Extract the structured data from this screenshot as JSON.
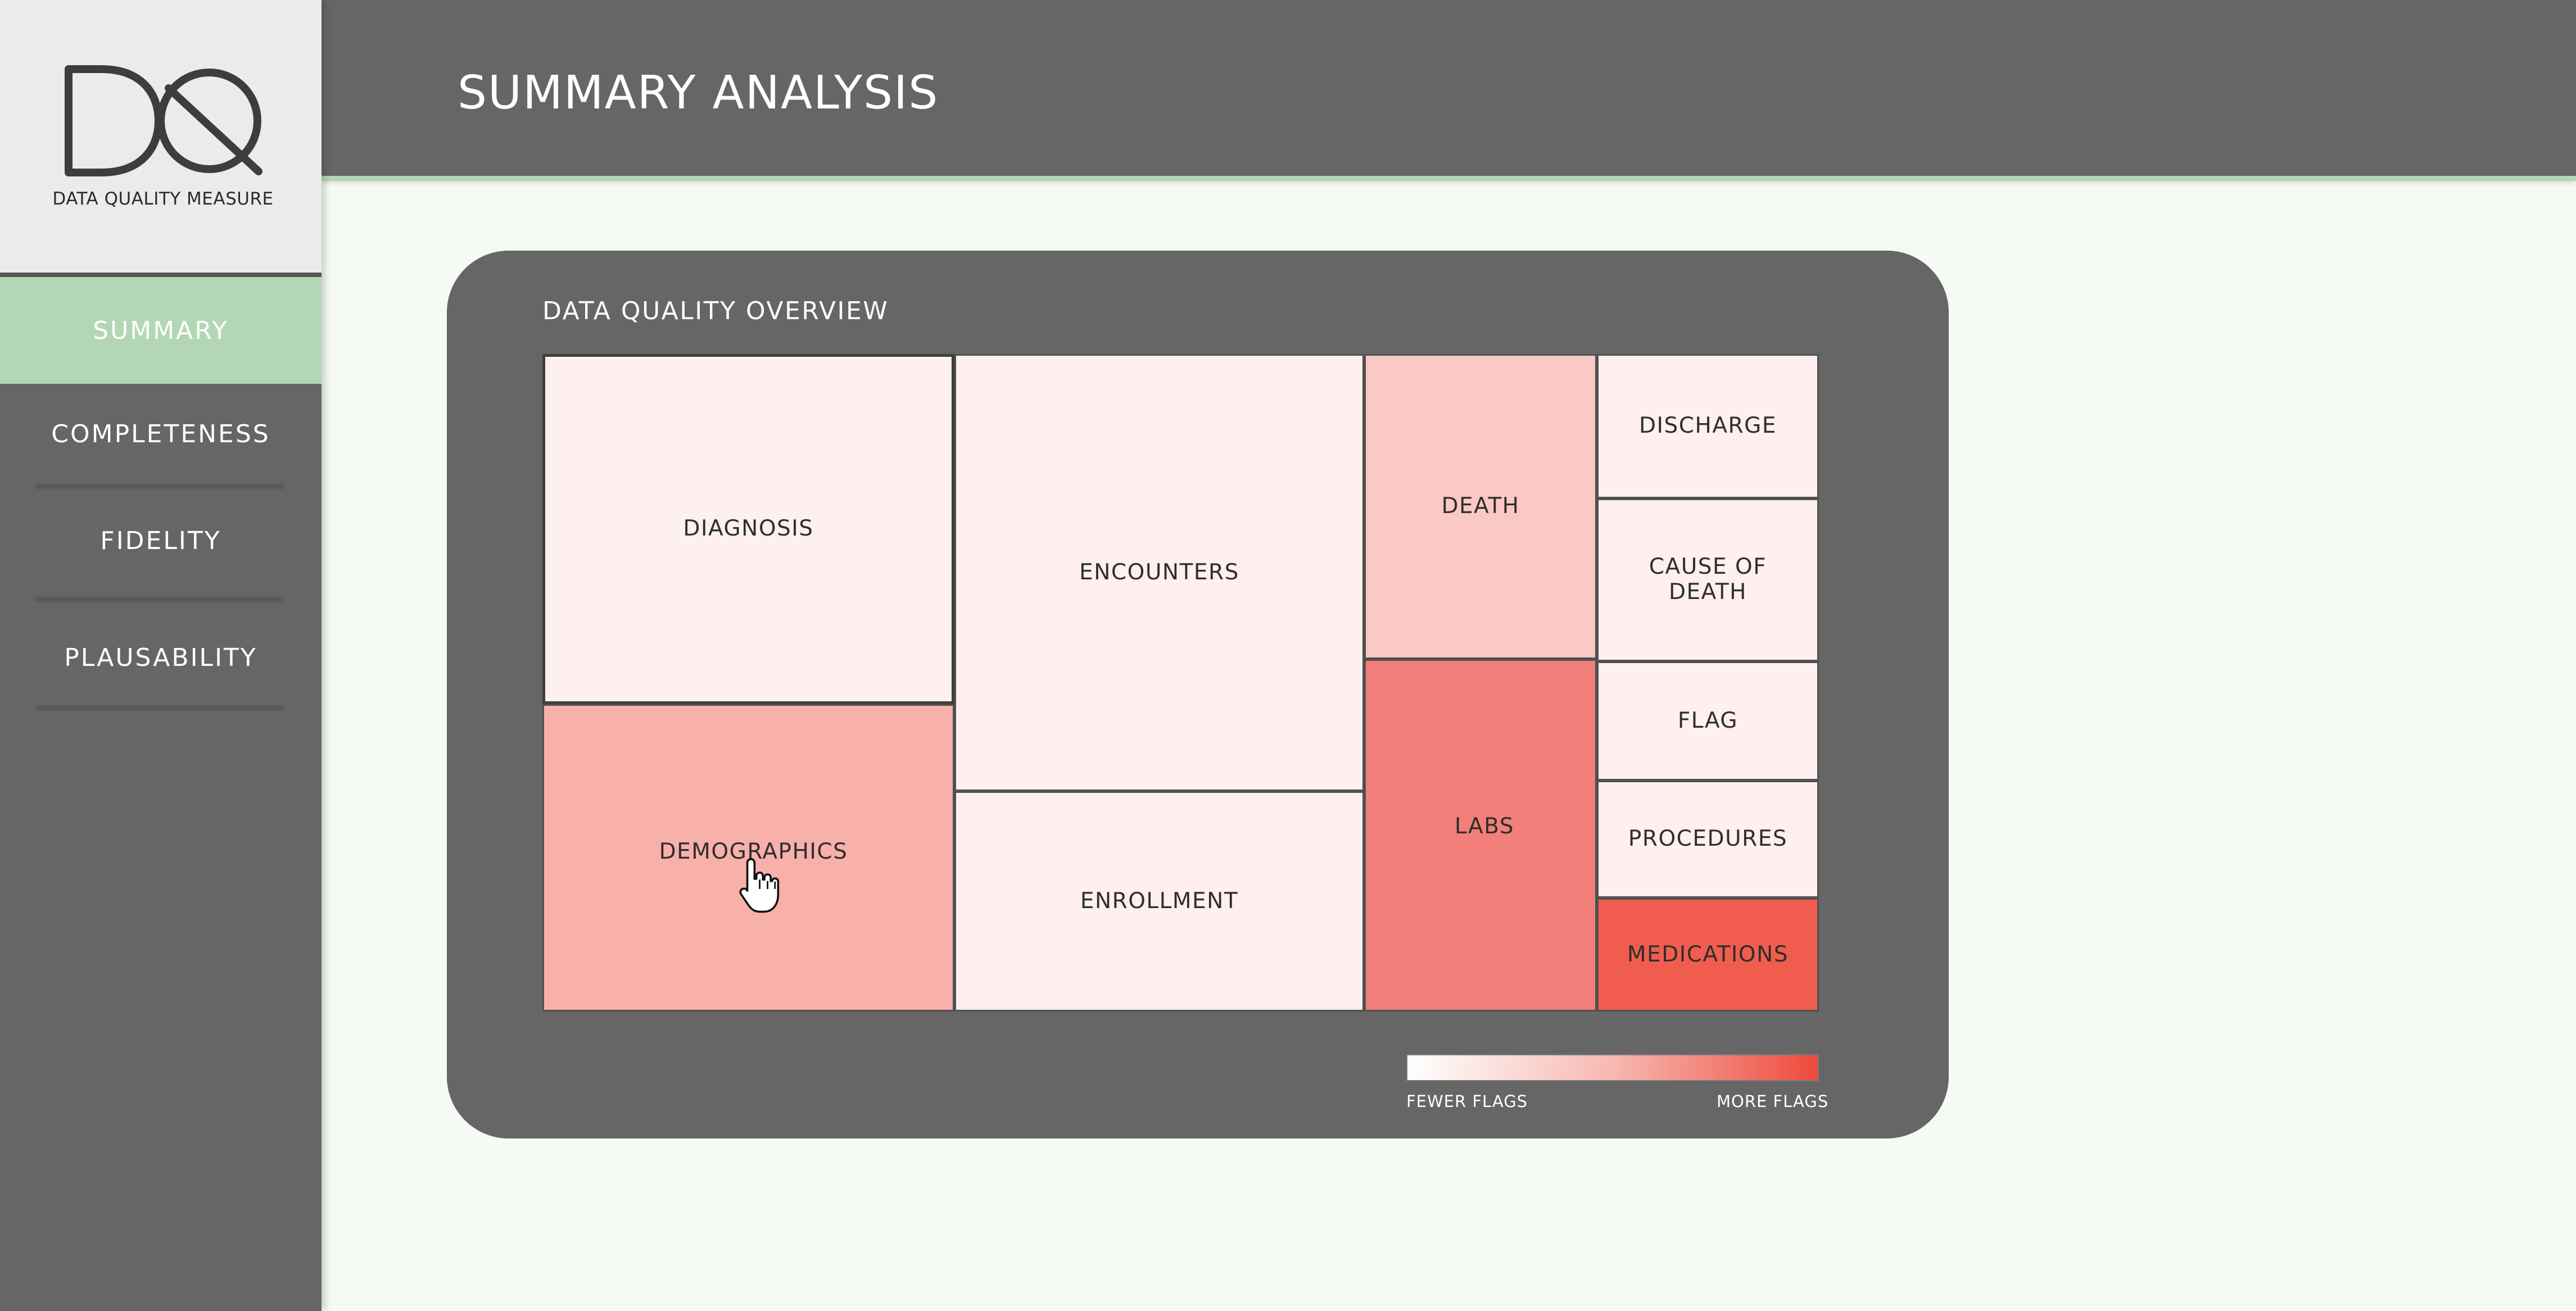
{
  "app": {
    "logo_text": "DATA QUALITY MEASURE",
    "logo_icon": "dq-logo"
  },
  "sidebar": {
    "items": [
      {
        "label": "SUMMARY",
        "active": true
      },
      {
        "label": "COMPLETENESS",
        "active": false
      },
      {
        "label": "FIDELITY",
        "active": false
      },
      {
        "label": "PLAUSABILITY",
        "active": false
      }
    ]
  },
  "header": {
    "title": "SUMMARY ANALYSIS"
  },
  "overview": {
    "title": "DATA QUALITY OVERVIEW",
    "legend": {
      "min_label": "FEWER FLAGS",
      "max_label": "MORE FLAGS"
    },
    "tiles": [
      {
        "label": "DIAGNOSIS",
        "color": "#fff0f0"
      },
      {
        "label": "DEMOGRAPHICS",
        "color": "#f8b0aa"
      },
      {
        "label": "ENCOUNTERS",
        "color": "#ffefef"
      },
      {
        "label": "ENROLLMENT",
        "color": "#ffefef"
      },
      {
        "label": "DEATH",
        "color": "#fac8c5"
      },
      {
        "label": "LABS",
        "color": "#f27f79"
      },
      {
        "label": "DISCHARGE",
        "color": "#ffefef"
      },
      {
        "label": "CAUSE OF\nDEATH",
        "color": "#ffefef"
      },
      {
        "label": "FLAG",
        "color": "#ffefef"
      },
      {
        "label": "PROCEDURES",
        "color": "#ffefef"
      },
      {
        "label": "MEDICATIONS",
        "color": "#f05d4e"
      }
    ]
  },
  "colors": {
    "sidebar_bg": "#666666",
    "accent_green": "#b3d7b4",
    "page_bg": "#f5faf4",
    "legend_low": "#ffffff",
    "legend_high": "#ee4a3c"
  },
  "cursor": {
    "icon": "hand-pointer-cursor"
  }
}
